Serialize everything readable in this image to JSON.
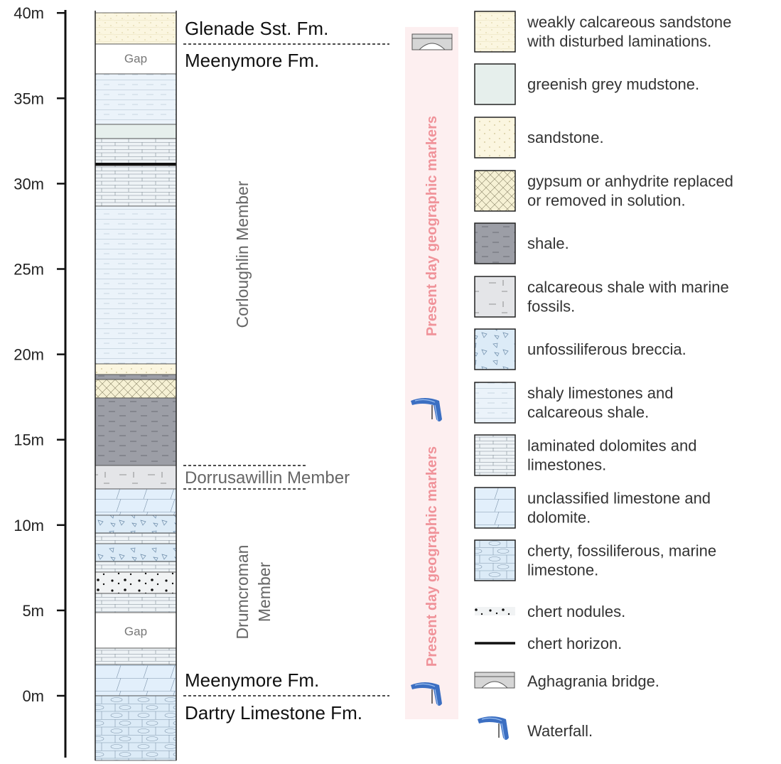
{
  "axis": {
    "ticks": [
      "0m",
      "5m",
      "10m",
      "15m",
      "20m",
      "25m",
      "30m",
      "35m",
      "40m"
    ]
  },
  "column": {
    "gaps": [
      "Gap",
      "Gap"
    ]
  },
  "formations": [
    "Glenade Sst. Fm.",
    "Meenymore Fm.",
    "Dorrusawillin Member",
    "Meenymore Fm.",
    "Dartry Limestone Fm."
  ],
  "members": {
    "corloughlin": [
      "Corloughlin Member"
    ],
    "drumcroman": [
      "Drumcroman",
      "Member"
    ]
  },
  "markers": [
    "Present day geographic markers",
    "Present day geographic markers"
  ],
  "legend": [
    {
      "lines": [
        "weakly calcareous sandstone",
        "with disturbed laminations."
      ]
    },
    {
      "lines": [
        "greenish grey mudstone."
      ]
    },
    {
      "lines": [
        "sandstone."
      ]
    },
    {
      "lines": [
        "gypsum or anhydrite replaced",
        "or removed in solution."
      ]
    },
    {
      "lines": [
        "shale."
      ]
    },
    {
      "lines": [
        "calcareous shale with marine",
        "fossils."
      ]
    },
    {
      "lines": [
        "unfossiliferous breccia."
      ]
    },
    {
      "lines": [
        "shaly limestones and",
        "calcareous shale."
      ]
    },
    {
      "lines": [
        "laminated dolomites and",
        "limestones."
      ]
    },
    {
      "lines": [
        "unclassified limestone and",
        "dolomite."
      ]
    },
    {
      "lines": [
        "cherty, fossiliferous, marine",
        "limestone."
      ]
    },
    {
      "lines": [
        "chert nodules."
      ]
    },
    {
      "lines": [
        "chert horizon."
      ]
    },
    {
      "lines": [
        "Aghagrania bridge."
      ]
    },
    {
      "lines": [
        "Waterfall."
      ]
    }
  ]
}
